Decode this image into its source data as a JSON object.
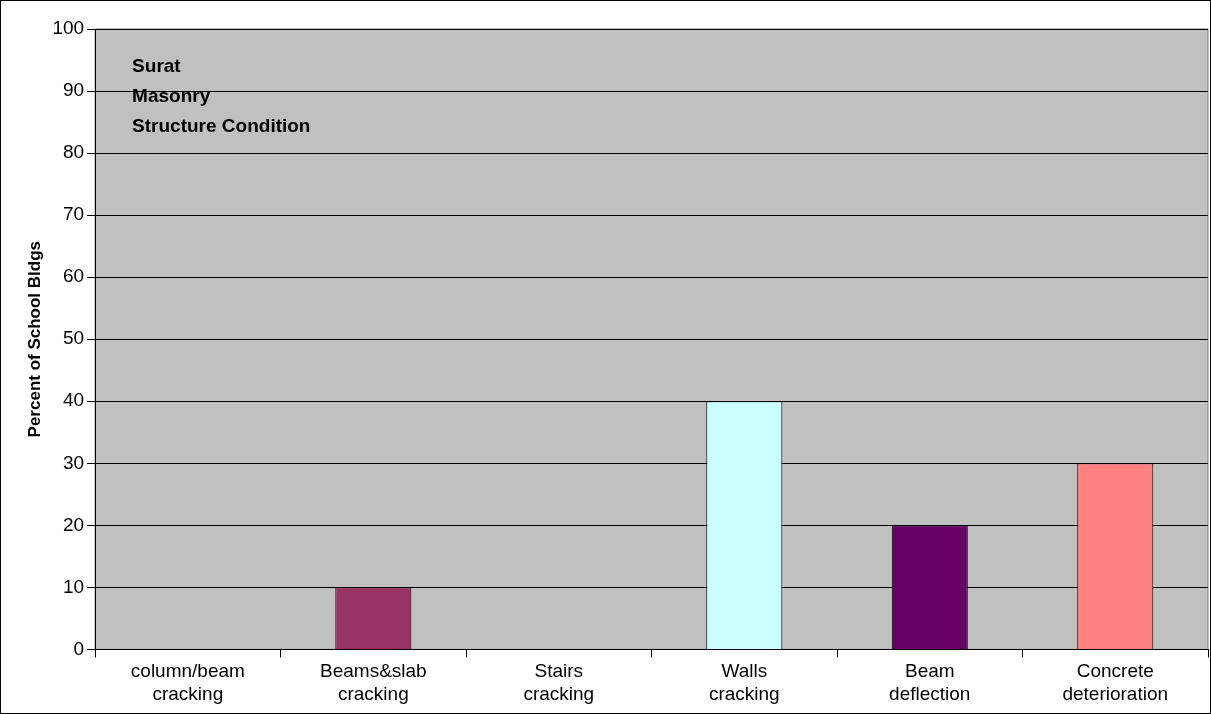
{
  "chart_data": {
    "type": "bar",
    "categories": [
      "column/beam cracking",
      "Beams&slab cracking",
      "Stairs cracking",
      "Walls cracking",
      "Beam deflection",
      "Concrete deterioration"
    ],
    "values": [
      0,
      10,
      0,
      40,
      20,
      30
    ],
    "colors": [
      "#9999ff",
      "#993366",
      "#ffffcc",
      "#ccffff",
      "#660066",
      "#ff8080"
    ],
    "ylabel": "Percent of School Bldgs",
    "annotations": [
      "Surat",
      "Masonry",
      "Structure Condition"
    ],
    "ylim": [
      0,
      100
    ],
    "yticks": [
      0,
      10,
      20,
      30,
      40,
      50,
      60,
      70,
      80,
      90,
      100
    ],
    "grid": "y",
    "legend": false
  }
}
